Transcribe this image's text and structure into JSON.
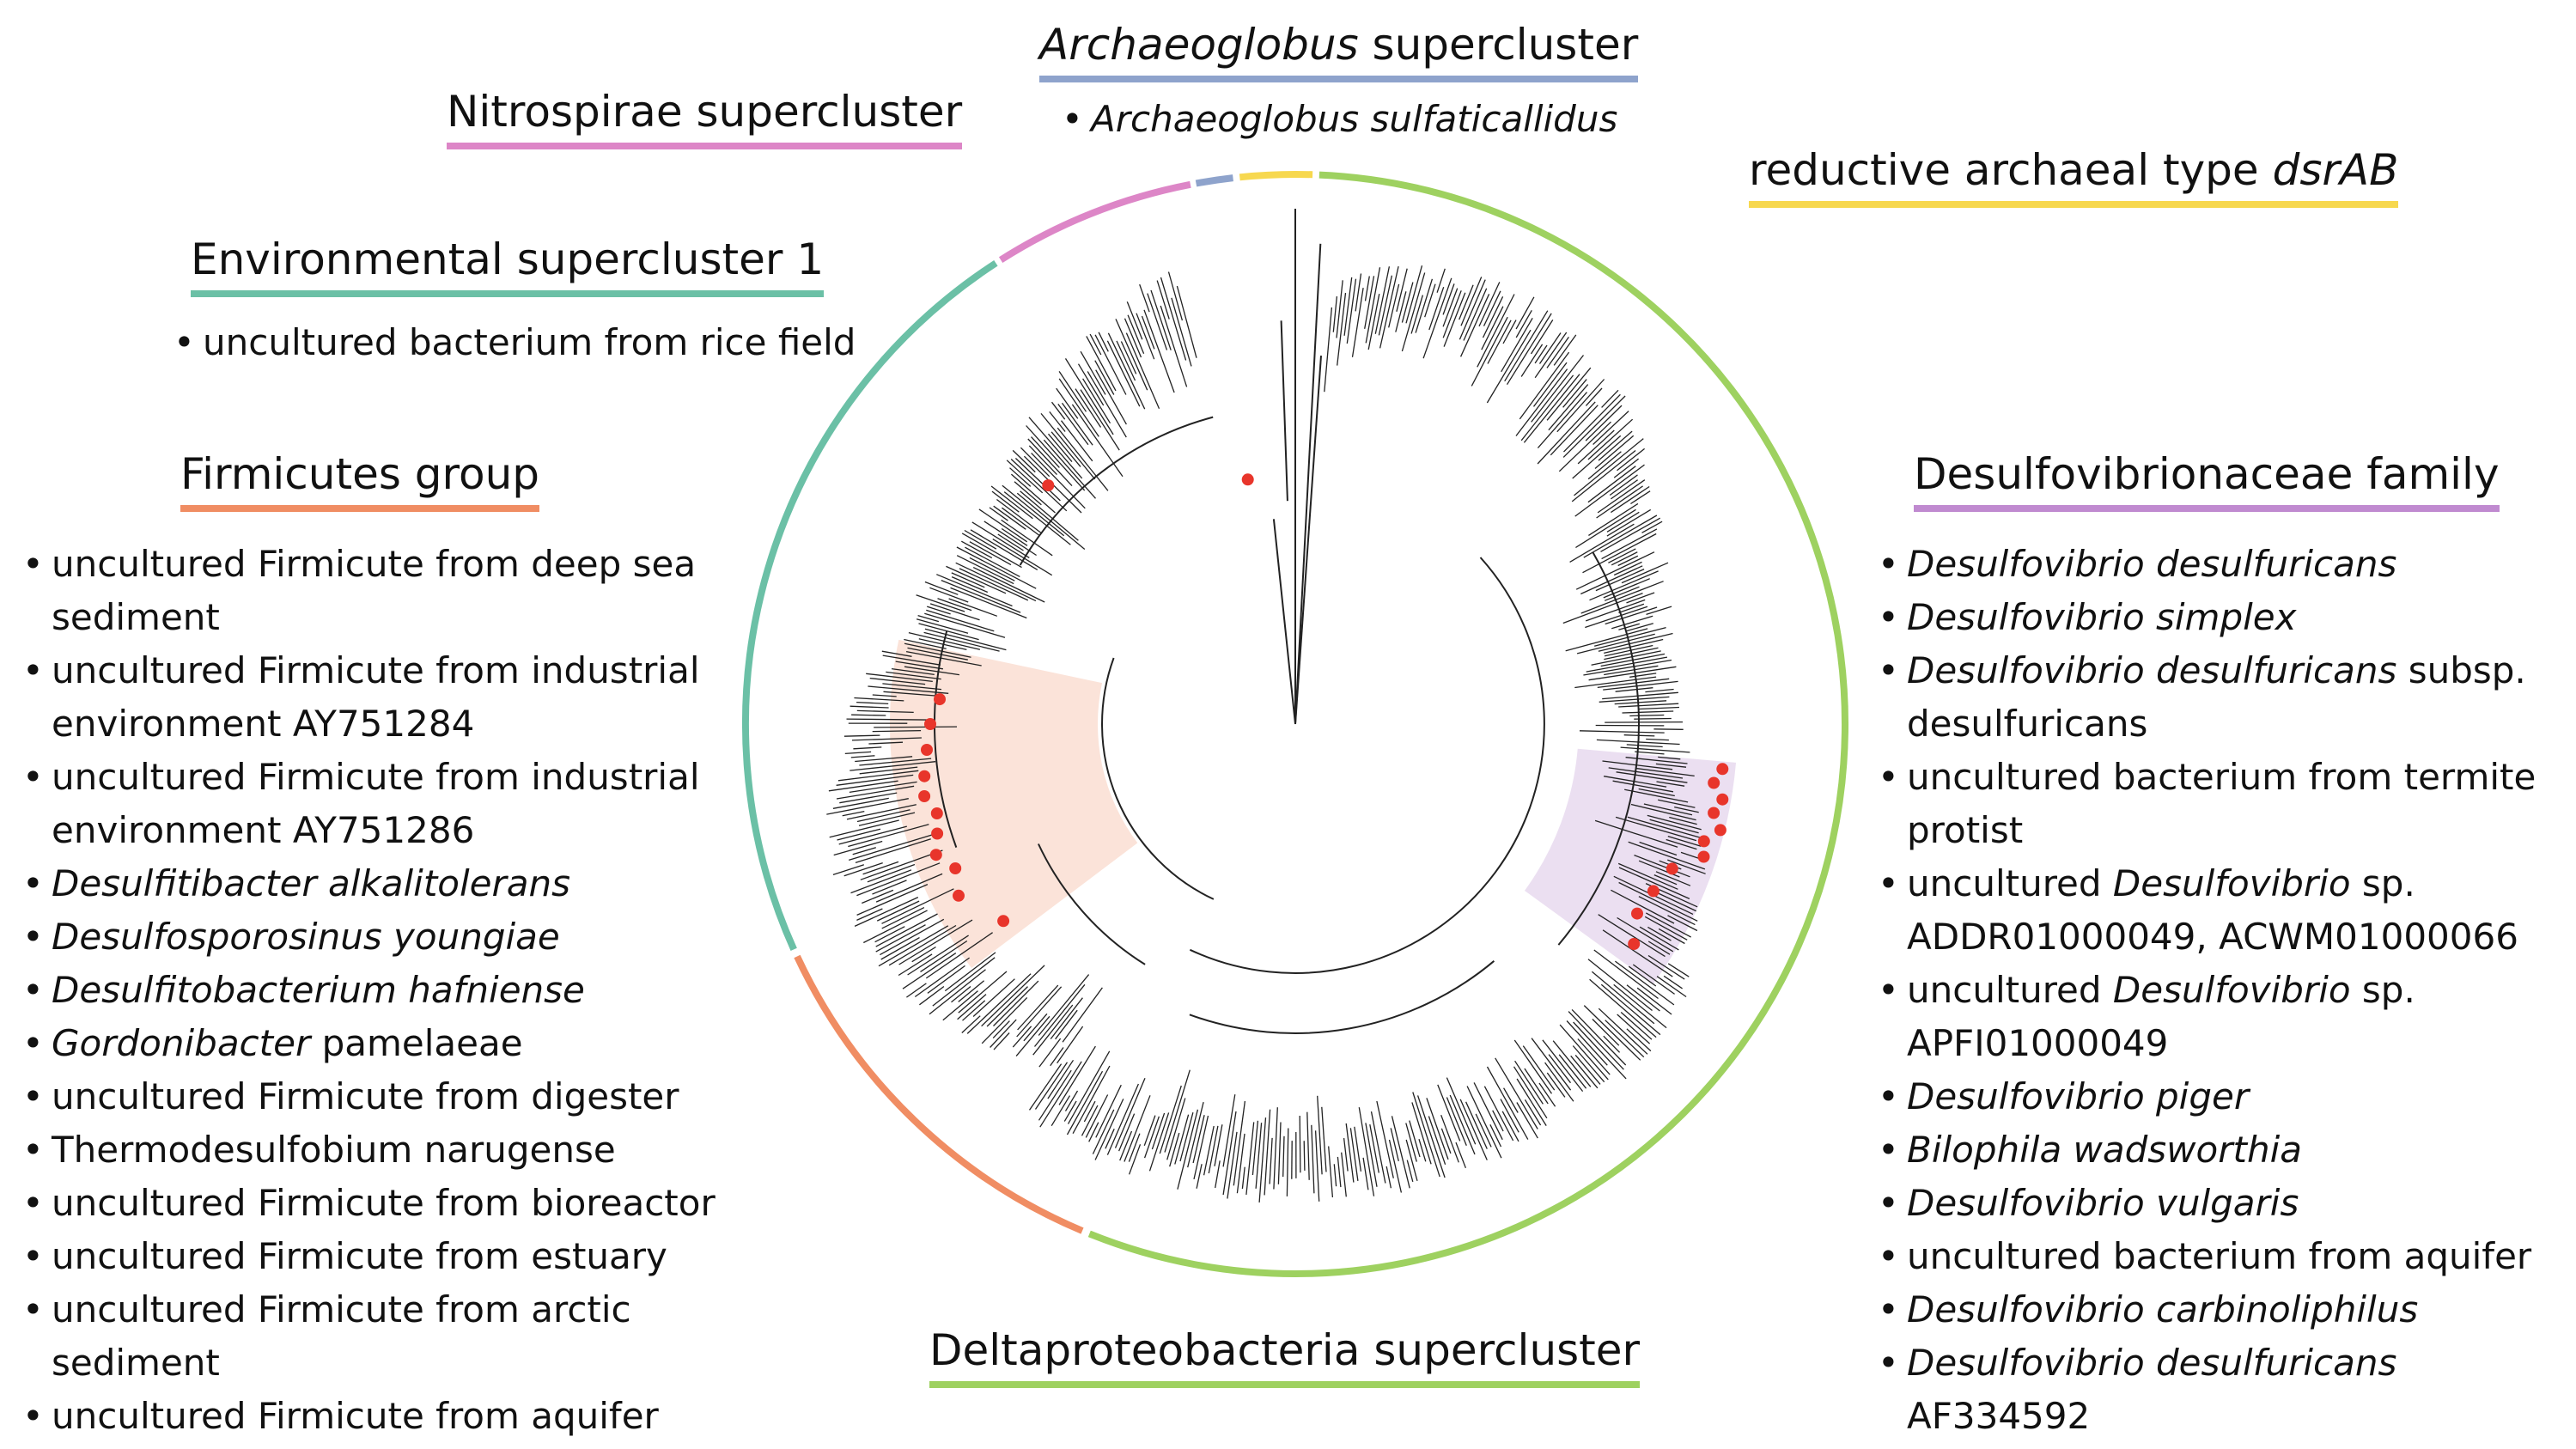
{
  "colors": {
    "deltaproteobacteria": "#9ed160",
    "firmicutes": "#f08d63",
    "environmental": "#6bc0a6",
    "nitrospirae": "#dd86c7",
    "archaeoglobus": "#8ea3cc",
    "reductive_archaeal": "#f7d84f",
    "desulfovibrionaceae": "#c08ad0",
    "highlight_firmicutes": "#fbe3d9",
    "highlight_desulfovibrionaceae": "#ebdff1",
    "marker": "#e8352b",
    "branch": "#222222"
  },
  "archaeoglobus": {
    "title_italic": "Archaeoglobus",
    "title_rest": " supercluster",
    "items": [
      {
        "italic": "Archaeoglobus sulfaticallidus",
        "plain": ""
      }
    ]
  },
  "nitrospirae": {
    "title": "Nitrospirae supercluster"
  },
  "reductive": {
    "title_plain": "reductive archaeal type ",
    "title_italic": "dsrAB"
  },
  "environmental": {
    "title": "Environmental supercluster 1",
    "items": [
      {
        "plain": "uncultured bacterium from rice field"
      }
    ]
  },
  "firmicutes": {
    "title": "Firmicutes group",
    "items": [
      {
        "plain": "uncultured Firmicute from deep sea",
        "line2": "sediment"
      },
      {
        "plain": "uncultured Firmicute from industrial",
        "line2": "environment AY751284"
      },
      {
        "plain": "uncultured Firmicute from industrial",
        "line2": "environment AY751286"
      },
      {
        "italic": "Desulfitibacter alkalitolerans"
      },
      {
        "italic": "Desulfosporosinus youngiae"
      },
      {
        "italic": "Desulfitobacterium hafniense"
      },
      {
        "italic": "Gordonibacter",
        "plain": " pamelaeae"
      },
      {
        "plain": "uncultured Firmicute from digester"
      },
      {
        "plain": "Thermodesulfobium narugense"
      },
      {
        "plain": "uncultured Firmicute from bioreactor"
      },
      {
        "plain": "uncultured Firmicute from estuary"
      },
      {
        "plain": "uncultured Firmicute from arctic",
        "line2": "sediment"
      },
      {
        "plain": "uncultured Firmicute from aquifer"
      }
    ]
  },
  "desulfovibrionaceae": {
    "title": "Desulfovibrionaceae family",
    "items": [
      {
        "italic": "Desulfovibrio desulfuricans"
      },
      {
        "italic": "Desulfovibrio simplex"
      },
      {
        "italic": "Desulfovibrio desulfuricans",
        "plain": " subsp.",
        "line2": "desulfuricans"
      },
      {
        "plain": "uncultured bacterium from termite",
        "line2": "protist"
      },
      {
        "plain": "uncultured ",
        "italic": "Desulfovibrio",
        "plain2": " sp.",
        "line2": "ADDR01000049, ACWM01000066"
      },
      {
        "plain": "uncultured ",
        "italic": "Desulfovibrio",
        "plain2": " sp.",
        "line2": "APFI01000049"
      },
      {
        "italic": "Desulfovibrio piger"
      },
      {
        "italic": "Bilophila wadsworthia"
      },
      {
        "italic": "Desulfovibrio vulgaris"
      },
      {
        "plain": "uncultured bacterium from aquifer"
      },
      {
        "italic": "Desulfovibrio carbinoliphilus"
      },
      {
        "italic": "Desulfovibrio desulfuricans",
        "plain": " AF334592"
      }
    ]
  },
  "deltaproteobacteria": {
    "title": "Deltaproteobacteria supercluster"
  }
}
